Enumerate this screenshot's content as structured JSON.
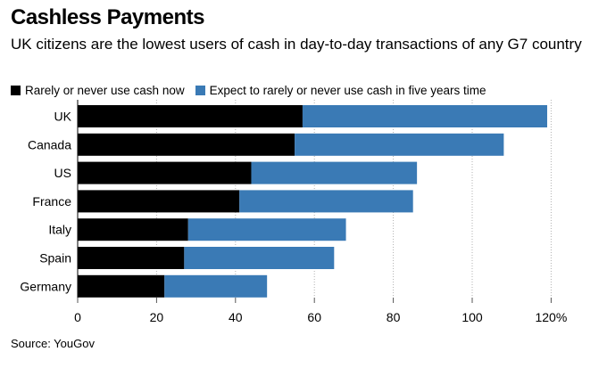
{
  "header": {
    "title": "Cashless Payments",
    "subtitle": "UK citizens are the lowest users of cash in day-to-day transactions of any G7 country"
  },
  "legend": {
    "items": [
      {
        "label": "Rarely or never use cash now",
        "color": "#000000"
      },
      {
        "label": "Expect to rarely or never use cash in five years time",
        "color": "#3a7ab5"
      }
    ]
  },
  "footer": {
    "source": "Source: YouGov"
  },
  "chart_data": {
    "type": "bar",
    "orientation": "horizontal",
    "stacked": true,
    "title": "Cashless Payments",
    "subtitle": "UK citizens are the lowest users of cash in day-to-day transactions of any G7 country",
    "categories": [
      "UK",
      "Canada",
      "US",
      "France",
      "Italy",
      "Spain",
      "Germany"
    ],
    "series": [
      {
        "name": "Rarely or never use cash now",
        "color": "#000000",
        "values": [
          57,
          55,
          44,
          41,
          28,
          27,
          22
        ]
      },
      {
        "name": "Expect to rarely or never use cash in five years time",
        "color": "#3a7ab5",
        "values": [
          62,
          53,
          42,
          44,
          40,
          38,
          26
        ]
      }
    ],
    "xlim": [
      0,
      120
    ],
    "xticks": [
      0,
      20,
      40,
      60,
      80,
      100,
      120
    ],
    "xtick_labels": [
      "0",
      "20",
      "40",
      "60",
      "80",
      "100",
      "120%"
    ],
    "grid": true,
    "legend_position": "top-left"
  }
}
